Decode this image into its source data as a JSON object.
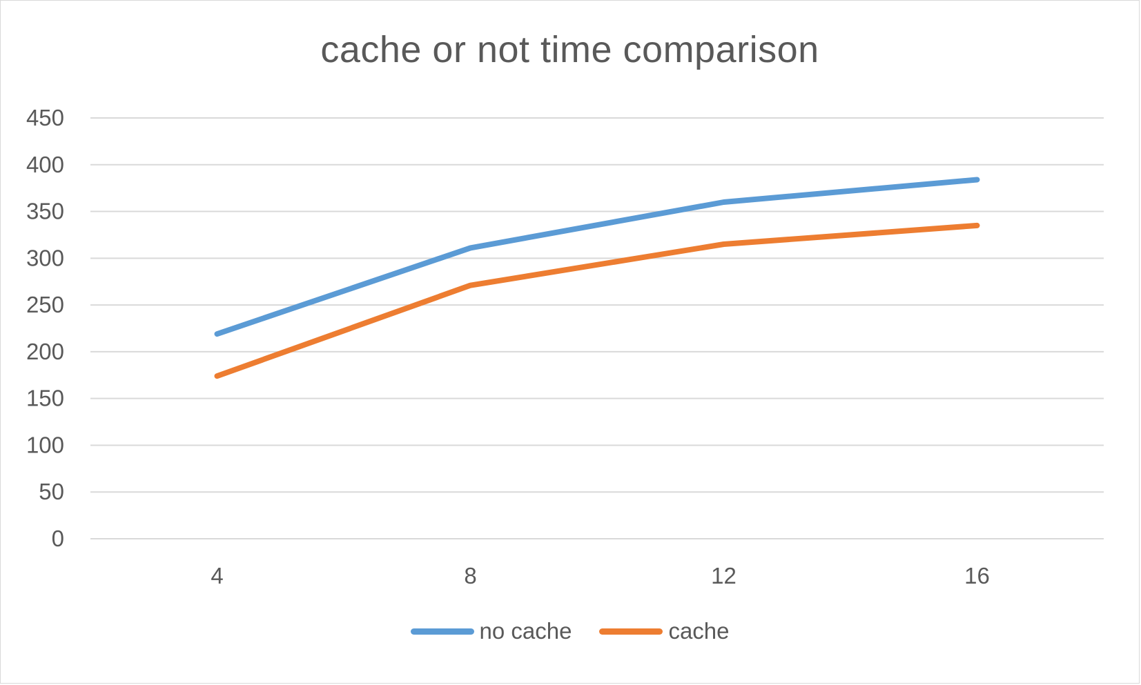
{
  "chart_data": {
    "type": "line",
    "title": "cache or not time comparison",
    "xlabel": "",
    "ylabel": "",
    "categories": [
      "4",
      "8",
      "12",
      "16"
    ],
    "yticks": [
      "0",
      "50",
      "100",
      "150",
      "200",
      "250",
      "300",
      "350",
      "400",
      "450"
    ],
    "ylim": [
      0,
      450
    ],
    "grid": true,
    "legend_position": "bottom",
    "series": [
      {
        "name": "no cache",
        "color": "#5b9bd5",
        "values": [
          219,
          311,
          360,
          384
        ]
      },
      {
        "name": "cache",
        "color": "#ed7d31",
        "values": [
          174,
          271,
          315,
          335
        ]
      }
    ]
  }
}
